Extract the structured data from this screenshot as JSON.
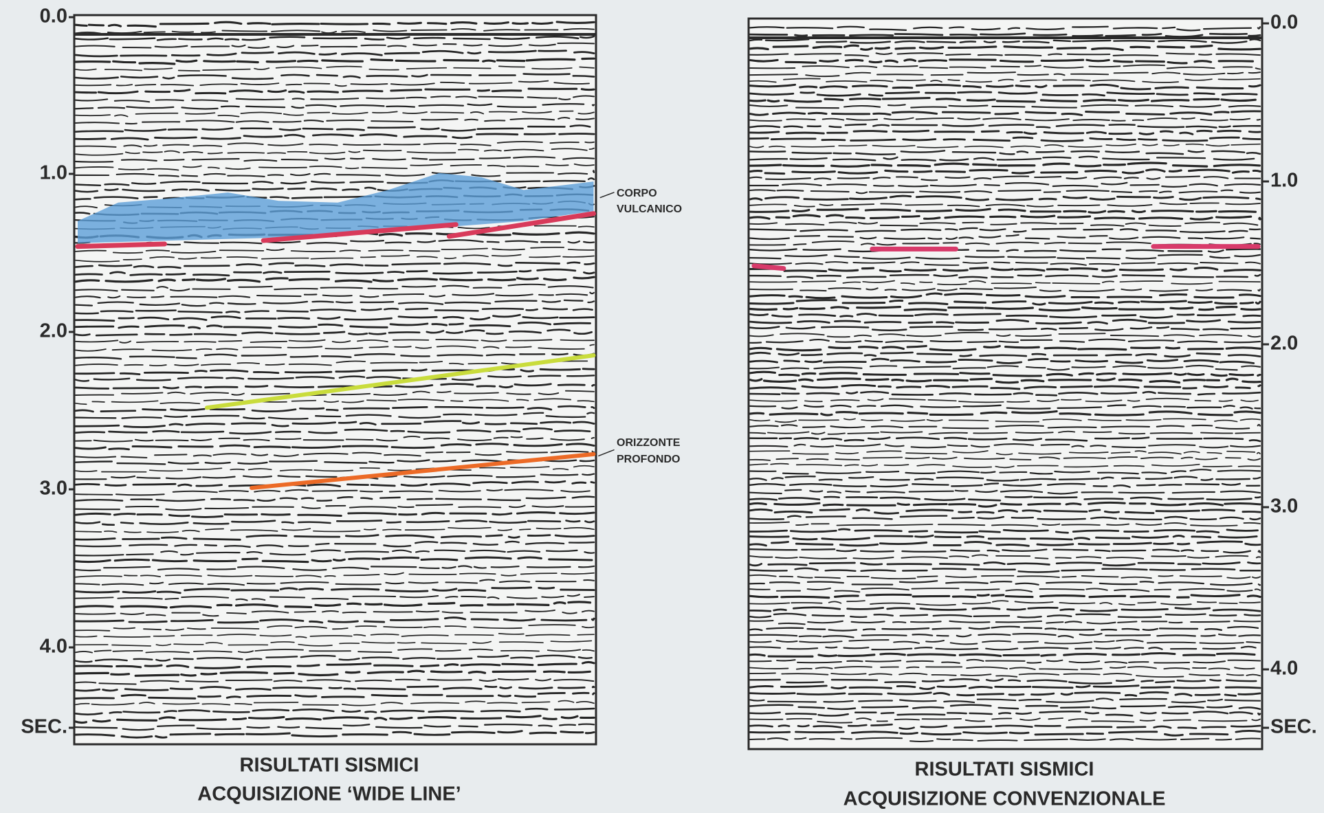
{
  "left_panel": {
    "axis_labels": [
      "0.0",
      "1.0",
      "2.0",
      "3.0",
      "4.0",
      "SEC."
    ],
    "annotations": [
      {
        "lines": [
          "CORPO",
          "VULCANICO"
        ]
      },
      {
        "lines": [
          "ORIZZONTE",
          "PROFONDO"
        ]
      }
    ],
    "caption": [
      "RISULTATI SISMICI",
      "ACQUISIZIONE ‘WIDE LINE’"
    ]
  },
  "right_panel": {
    "axis_labels": [
      "0.0",
      "1.0",
      "2.0",
      "3.0",
      "4.0",
      "SEC."
    ],
    "caption": [
      "RISULTATI SISMICI",
      "ACQUISIZIONE CONVENZIONALE"
    ]
  }
}
